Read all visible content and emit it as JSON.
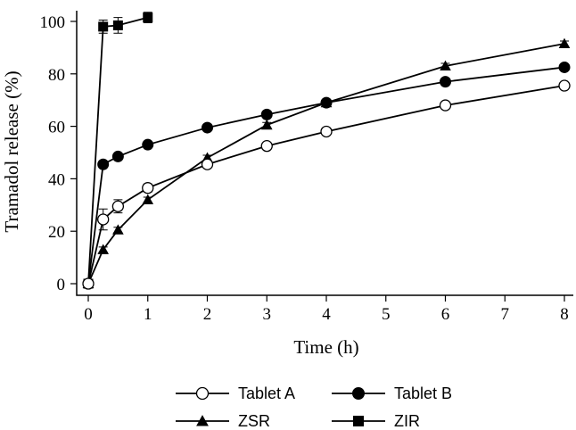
{
  "chart_data": {
    "type": "line",
    "title": "",
    "xlabel": "Time (h)",
    "ylabel": "Tramadol release (%)",
    "xlim": [
      0,
      8
    ],
    "ylim": [
      0,
      100
    ],
    "xticks": [
      0,
      1,
      2,
      3,
      4,
      5,
      6,
      7,
      8
    ],
    "yticks": [
      0,
      20,
      40,
      60,
      80,
      100
    ],
    "grid": false,
    "legend_position": "bottom",
    "series": [
      {
        "name": "Tablet A",
        "marker": "circle-open",
        "x": [
          0,
          0.25,
          0.5,
          1,
          2,
          3,
          4,
          6,
          8
        ],
        "y": [
          0,
          24.5,
          29.5,
          36.5,
          45.5,
          52.5,
          58,
          68,
          75.5
        ],
        "err": [
          0,
          4,
          2.5,
          1.5,
          1,
          1,
          1,
          1,
          1
        ]
      },
      {
        "name": "Tablet B",
        "marker": "circle-filled",
        "x": [
          0,
          0.25,
          0.5,
          1,
          2,
          3,
          4,
          6,
          8
        ],
        "y": [
          0,
          45.5,
          48.5,
          53,
          59.5,
          64.5,
          69,
          77,
          82.5
        ],
        "err": [
          0,
          1,
          1,
          1,
          1,
          1,
          1,
          1,
          1
        ]
      },
      {
        "name": "ZSR",
        "marker": "triangle-filled",
        "x": [
          0,
          0.25,
          0.5,
          1,
          2,
          3,
          4,
          6,
          8
        ],
        "y": [
          0,
          13,
          20.5,
          32,
          48,
          60.5,
          69,
          83,
          91.5
        ],
        "err": [
          0,
          1,
          1,
          1,
          1,
          1,
          1,
          1,
          1
        ]
      },
      {
        "name": "ZIR",
        "marker": "square-filled",
        "x": [
          0,
          0.25,
          0.5,
          1
        ],
        "y": [
          0,
          98,
          98.5,
          101.5
        ],
        "err": [
          0,
          2.5,
          3,
          2
        ]
      }
    ]
  }
}
